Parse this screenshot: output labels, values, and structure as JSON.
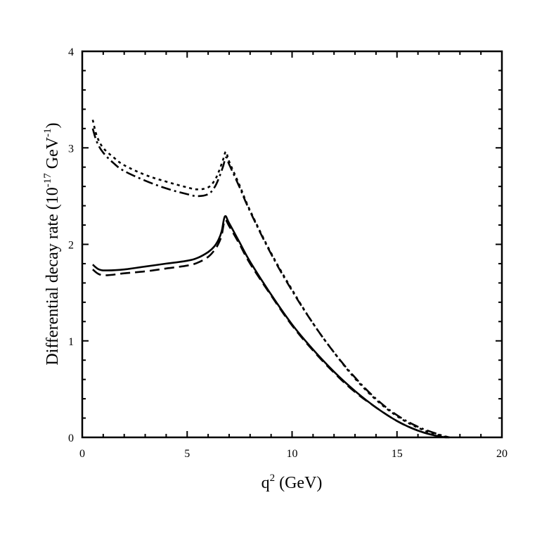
{
  "chart_data": {
    "type": "line",
    "title": "",
    "xlabel": "q",
    "xlabel_sup": "2",
    "xlabel_unit": " (GeV)",
    "ylabel": "Differential decay rate (10",
    "ylabel_sup1": "-17",
    "ylabel_mid": " GeV",
    "ylabel_sup2": "-1",
    "ylabel_end": ")",
    "xlim": [
      0,
      20
    ],
    "ylim": [
      0,
      4
    ],
    "xticks": [
      0,
      5,
      10,
      15,
      20
    ],
    "xtick_labels": [
      "0",
      "5",
      "10",
      "15",
      "20"
    ],
    "yticks": [
      0,
      1,
      2,
      3,
      4
    ],
    "ytick_labels": [
      "0",
      "1",
      "2",
      "3",
      "4"
    ],
    "grid": false,
    "legend": "none",
    "series": [
      {
        "name": "solid",
        "style": "solid",
        "x": [
          0.5,
          0.8,
          1.2,
          2,
          3,
          4,
          5,
          5.5,
          6,
          6.3,
          6.5,
          6.65,
          6.8,
          7.0,
          7.5,
          8,
          9,
          10,
          11,
          12,
          13,
          14,
          15,
          16,
          17,
          17.5
        ],
        "y": [
          1.79,
          1.74,
          1.73,
          1.74,
          1.77,
          1.8,
          1.83,
          1.86,
          1.92,
          1.98,
          2.05,
          2.14,
          2.29,
          2.22,
          2.02,
          1.82,
          1.48,
          1.17,
          0.91,
          0.68,
          0.48,
          0.31,
          0.17,
          0.07,
          0.01,
          0.0
        ]
      },
      {
        "name": "dashed",
        "style": "dashed",
        "x": [
          0.5,
          0.8,
          1.2,
          2,
          3,
          4,
          5,
          5.5,
          6,
          6.3,
          6.5,
          6.65,
          6.8,
          7.0,
          7.5,
          8,
          9,
          10,
          11,
          12,
          13,
          14,
          15,
          16,
          17,
          17.5
        ],
        "y": [
          1.74,
          1.69,
          1.68,
          1.7,
          1.72,
          1.75,
          1.78,
          1.81,
          1.87,
          1.94,
          2.01,
          2.1,
          2.25,
          2.19,
          2.0,
          1.8,
          1.47,
          1.16,
          0.9,
          0.67,
          0.47,
          0.31,
          0.17,
          0.07,
          0.01,
          0.0
        ]
      },
      {
        "name": "dotted",
        "style": "dotted",
        "x": [
          0.5,
          0.7,
          1.0,
          1.5,
          2,
          3,
          4,
          5,
          5.5,
          6,
          6.3,
          6.5,
          6.7,
          6.85,
          7.0,
          7.5,
          8,
          9,
          10,
          11,
          12,
          13,
          14,
          15,
          16,
          17,
          17.5
        ],
        "y": [
          3.29,
          3.12,
          3.0,
          2.9,
          2.82,
          2.72,
          2.65,
          2.59,
          2.57,
          2.59,
          2.66,
          2.75,
          2.87,
          2.96,
          2.86,
          2.61,
          2.35,
          1.91,
          1.53,
          1.18,
          0.88,
          0.61,
          0.39,
          0.22,
          0.1,
          0.02,
          0.0
        ]
      },
      {
        "name": "dash-dot",
        "style": "dashdot",
        "x": [
          0.5,
          0.7,
          1.0,
          1.5,
          2,
          3,
          4,
          5,
          5.5,
          6,
          6.3,
          6.5,
          6.7,
          6.85,
          7.0,
          7.5,
          8,
          9,
          10,
          11,
          12,
          13,
          14,
          15,
          16,
          17,
          17.5
        ],
        "y": [
          3.2,
          3.06,
          2.95,
          2.84,
          2.76,
          2.66,
          2.58,
          2.52,
          2.5,
          2.52,
          2.59,
          2.68,
          2.8,
          2.9,
          2.83,
          2.59,
          2.34,
          1.9,
          1.52,
          1.18,
          0.88,
          0.62,
          0.4,
          0.23,
          0.11,
          0.03,
          0.0
        ]
      }
    ]
  }
}
